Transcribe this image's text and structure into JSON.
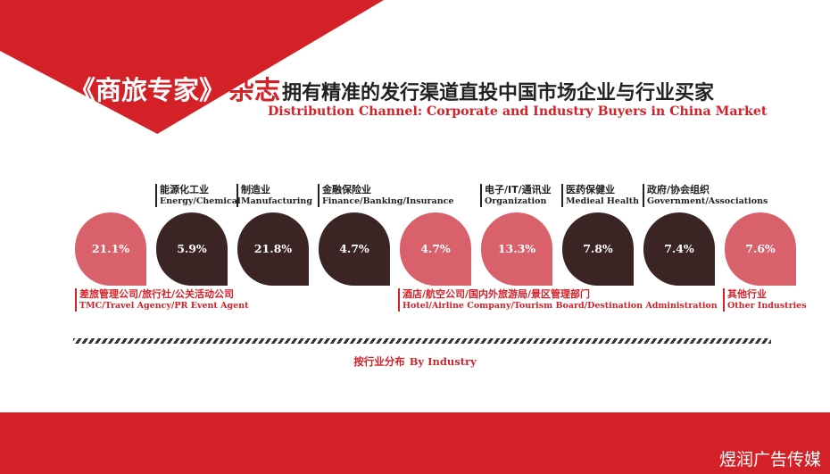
{
  "header": {
    "magazine": "《商旅专家》",
    "magazine_suffix": "杂志",
    "title_cn": "拥有精准的发行渠道直投中国市场企业与行业买家",
    "title_en": "Distribution Channel: Corporate and Industry Buyers in China Market"
  },
  "chart_data": {
    "type": "pie",
    "title": "",
    "caption_cn": "按行业分布",
    "caption_en": "By Industry",
    "categories": [
      "TMC/Travel Agency/PR Event Agent",
      "Energy/Chemical",
      "Manufacturing",
      "Finance/Banking/Insurance",
      "Hotel/Airline Company/Tourism Board/Destination Administration",
      "Organization",
      "Medieal Health",
      "Government/Associations",
      "Other Industries"
    ],
    "value_labels": [
      "21.1%",
      "5.9%",
      "21.8%",
      "4.7%",
      "4.7%",
      "13.3%",
      "7.8%",
      "7.4%",
      "7.6%"
    ],
    "values": [
      21.1,
      5.9,
      21.8,
      4.7,
      4.7,
      13.3,
      7.8,
      7.4,
      7.6
    ],
    "colors": {
      "pink": "#d9616c",
      "dark": "#3a2424",
      "accent": "#d42128"
    },
    "bubble_colors": [
      "pink",
      "dark",
      "dark",
      "dark",
      "pink",
      "pink",
      "dark",
      "dark",
      "pink"
    ],
    "labels_top": [
      {
        "cn": "能源化工业",
        "en": "Energy/Chemical"
      },
      {
        "cn": "制造业",
        "en": "Manufacturing"
      },
      {
        "cn": "金融保险业",
        "en": "Finance/Banking/Insurance"
      },
      {
        "cn": "电子/IT/通讯业",
        "en": "Organization"
      },
      {
        "cn": "医药保健业",
        "en": "Medieal Health"
      },
      {
        "cn": "政府/协会组织",
        "en": "Government/Associations"
      }
    ],
    "labels_bottom": [
      {
        "cn": "差旅管理公司/旅行社/公关活动公司",
        "en": "TMC/Travel Agency/PR Event Agent"
      },
      {
        "cn": "酒店/航空公司/国内外旅游局/景区管理部门",
        "en": "Hotel/Airline Company/Tourism Board/Destination Administration"
      },
      {
        "cn": "其他行业",
        "en": "Other Industries"
      }
    ]
  },
  "watermark": "煜润广告传媒"
}
